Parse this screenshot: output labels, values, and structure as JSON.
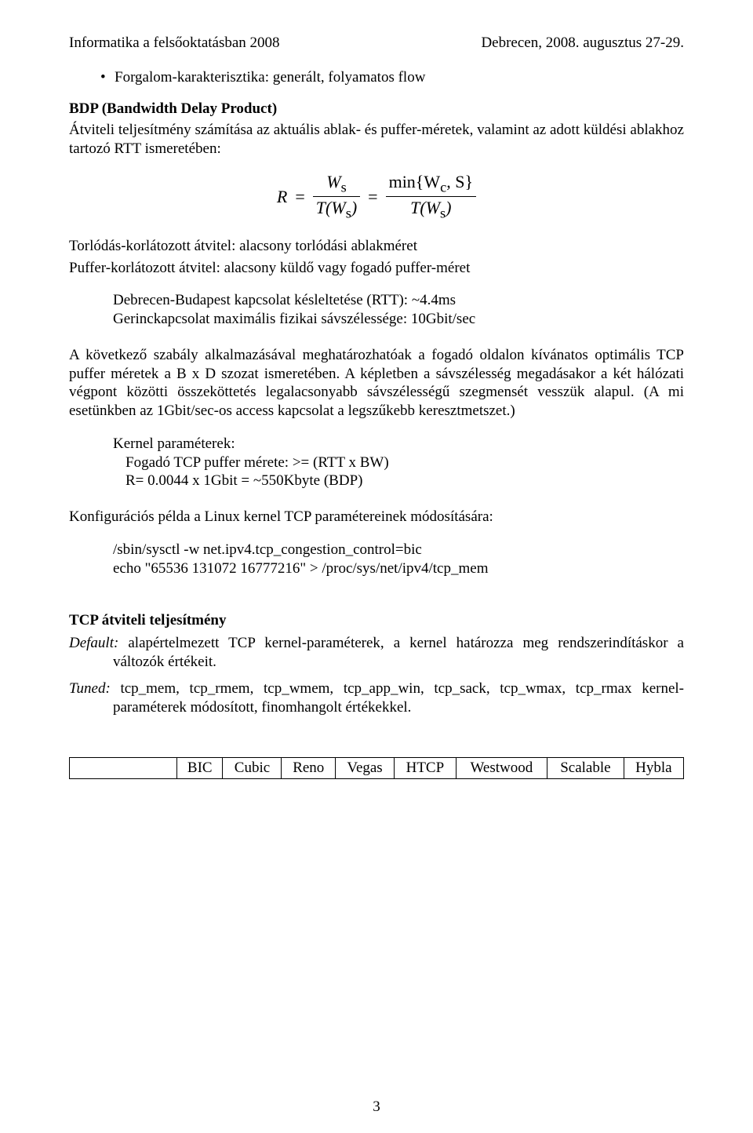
{
  "header": {
    "left": "Informatika a felsőoktatásban 2008",
    "right": "Debrecen, 2008. augusztus 27-29."
  },
  "bullet1": "Forgalom-karakterisztika: generált, folyamatos flow",
  "bdp": {
    "title": "BDP (Bandwidth Delay Product)",
    "para": "Átviteli teljesítmény számítása az aktuális ablak- és puffer-méretek, valamint az adott küldési ablakhoz tartozó RTT ismeretében:"
  },
  "formula": {
    "R": "R",
    "eq": "=",
    "ws": "W",
    "ws_sub": "s",
    "TWs": "T(W",
    "TWs_sub": "s",
    "TWs_close": ")",
    "min_top_a": "min{W",
    "min_top_b": "c",
    "min_top_c": ", S}"
  },
  "after_formula": {
    "l1": "Torlódás-korlátozott átvitel: alacsony torlódási ablakméret",
    "l2": "Puffer-korlátozott átvitel: alacsony küldő vagy fogadó puffer-méret"
  },
  "rtt_block": {
    "l1": "Debrecen-Budapest kapcsolat késleltetése (RTT): ~4.4ms",
    "l2": "Gerinckapcsolat maximális fizikai sávszélessége: 10Gbit/sec"
  },
  "rule_para": "A következő szabály alkalmazásával meghatározhatóak a fogadó oldalon kívánatos optimális TCP puffer méretek a B x D szozat ismeretében. A képletben a sávszélesség megadásakor a két hálózati végpont közötti összeköttetés legalacsonyabb sávszélességű szegmensét vesszük alapul. (A mi esetünkben az 1Gbit/sec-os access kapcsolat a legszűkebb keresztmetszet.)",
  "kernel_block": {
    "l1": "Kernel paraméterek:",
    "l2": "Fogadó TCP puffer mérete: >= (RTT x BW)",
    "l3": "R= 0.0044 x 1Gbit = ~550Kbyte   (BDP)"
  },
  "config_intro": "Konfigurációs példa a Linux kernel TCP paramétereinek módosítására:",
  "config_block": {
    "l1": "/sbin/sysctl -w net.ipv4.tcp_congestion_control=bic",
    "l2": "echo \"65536 131072 16777216\" > /proc/sys/net/ipv4/tcp_mem"
  },
  "perf_title": "TCP átviteli teljesítmény",
  "defs": {
    "default_label": "Default:",
    "default_text": " alapértelmezett TCP kernel-paraméterek, a kernel határozza meg rendszerindításkor a változók értékeit.",
    "tuned_label": "Tuned:",
    "tuned_text": " tcp_mem, tcp_rmem, tcp_wmem, tcp_app_win, tcp_sack, tcp_wmax, tcp_rmax kernel-paraméterek módosított, finomhangolt értékekkel."
  },
  "table": {
    "columns": [
      "",
      "BIC",
      "Cubic",
      "Reno",
      "Vegas",
      "HTCP",
      "Westwood",
      "Scalable",
      "Hybla"
    ]
  },
  "page_number": "3"
}
